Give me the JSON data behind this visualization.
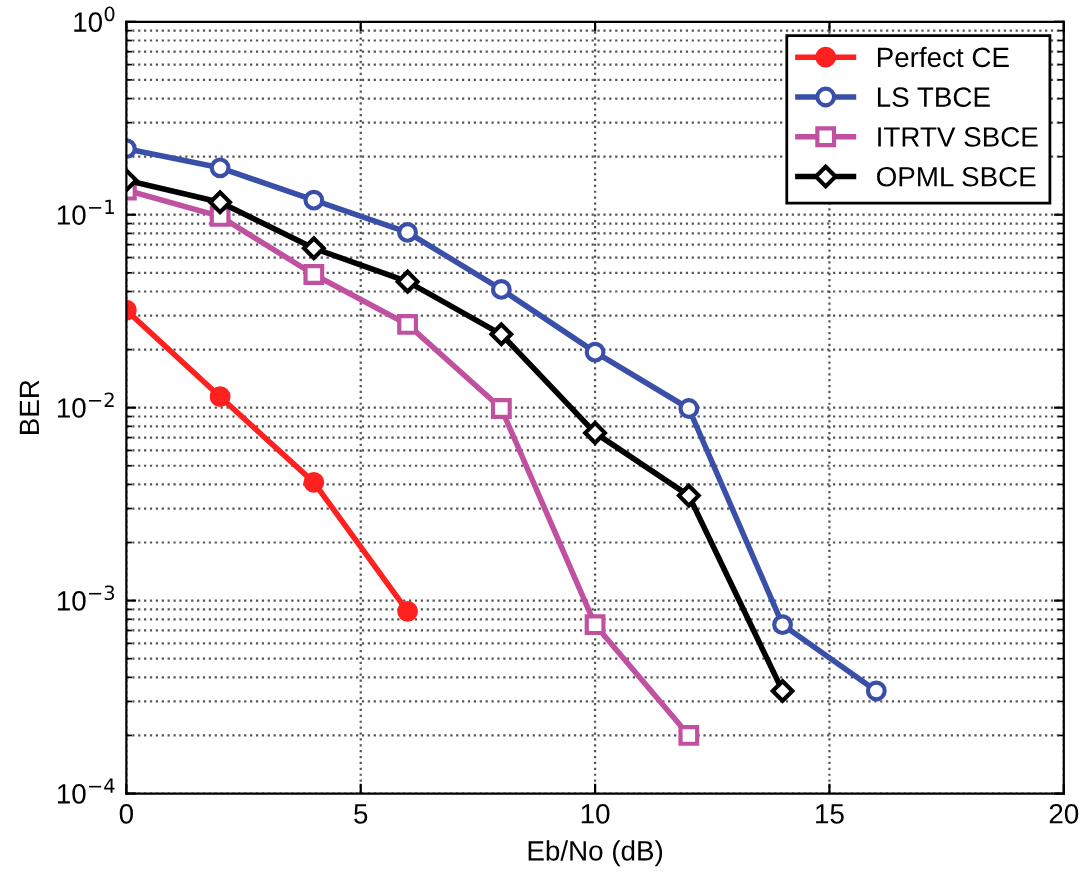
{
  "chart_data": {
    "type": "line",
    "xlabel": "Eb/No (dB)",
    "ylabel": "BER",
    "log": "y",
    "grid": true,
    "legend": "top right",
    "xlim": [
      0,
      20
    ],
    "xticks": [
      0,
      5,
      10,
      15,
      20
    ],
    "ylim": [
      0.0001,
      1
    ],
    "yticks": [
      {
        "value": 0.0001,
        "label": "10$^{−4}$"
      },
      {
        "value": 0.001,
        "label": "10$^{−3}$"
      },
      {
        "value": 0.01,
        "label": "10$^{−2}$"
      },
      {
        "value": 0.1,
        "label": "10$^{−1}$"
      },
      {
        "value": 1,
        "label": "10$^{0}$"
      }
    ],
    "series": [
      {
        "name": "Perfect CE",
        "color": "#ff2020",
        "marker": "circle",
        "x": [
          0,
          2,
          4,
          6
        ],
        "values": [
          0.032,
          0.0114,
          0.0041,
          0.00088
        ]
      },
      {
        "name": "LS TBCE",
        "color": "#3a50a8",
        "marker": "circle",
        "x": [
          0,
          2,
          4,
          6,
          8,
          10,
          12,
          14,
          16
        ],
        "values": [
          0.22,
          0.175,
          0.119,
          0.081,
          0.041,
          0.0194,
          0.0099,
          0.00075,
          0.00034
        ]
      },
      {
        "name": "ITRTV SBCE",
        "color": "#c050a0",
        "marker": "square",
        "x": [
          0,
          2,
          4,
          6,
          8,
          10,
          12
        ],
        "values": [
          0.134,
          0.098,
          0.049,
          0.027,
          0.0099,
          0.00075,
          0.0002
        ]
      },
      {
        "name": "OPML SBCE",
        "color": "#000000",
        "marker": "diamond",
        "x": [
          0,
          2,
          4,
          6,
          8,
          10,
          12,
          14
        ],
        "values": [
          0.151,
          0.116,
          0.067,
          0.045,
          0.024,
          0.0074,
          0.0035,
          0.00034
        ]
      }
    ]
  }
}
